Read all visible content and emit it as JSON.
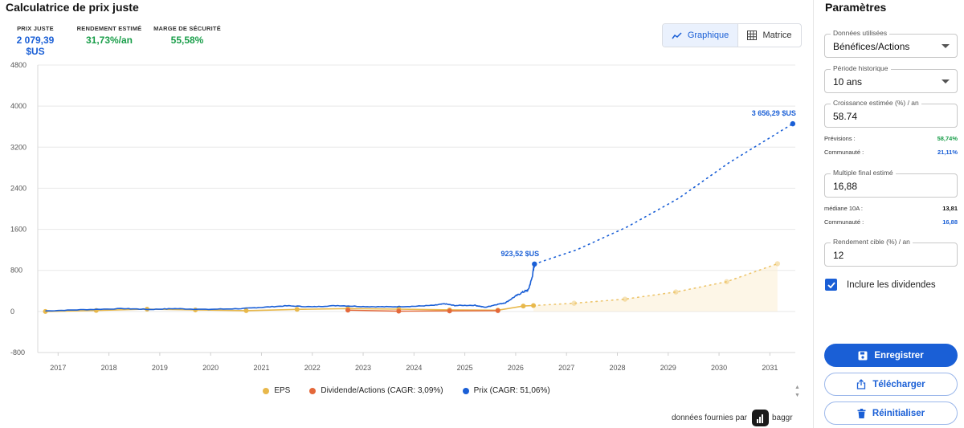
{
  "header": {
    "title": "Calculatrice de prix juste"
  },
  "stats": [
    {
      "label": "PRIX JUSTE",
      "value": "2 079,39 $US",
      "color": "#1a5fd6"
    },
    {
      "label": "RENDEMENT ESTIMÉ",
      "value": "31,73%/an",
      "color": "#1a9e4a"
    },
    {
      "label": "MARGE DE SÉCURITÉ",
      "value": "55,58%",
      "color": "#1a9e4a"
    }
  ],
  "view_toggle": {
    "chart_label": "Graphique",
    "matrix_label": "Matrice",
    "active": "Graphique"
  },
  "chart_data": {
    "type": "line",
    "x_ticks": [
      "2017",
      "2018",
      "2019",
      "2020",
      "2021",
      "2022",
      "2023",
      "2024",
      "2025",
      "2026",
      "2027",
      "2028",
      "2029",
      "2030",
      "2031"
    ],
    "y_ticks": [
      "4800",
      "4000",
      "3200",
      "2400",
      "1600",
      "800",
      "0",
      "-800"
    ],
    "ylim": [
      -800,
      4800
    ],
    "xlim": [
      2016.6,
      2031.5
    ],
    "series": [
      {
        "name": "EPS",
        "color": "#e8b84b",
        "points": [
          [
            2016.75,
            0
          ],
          [
            2017.75,
            20
          ],
          [
            2018.75,
            45
          ],
          [
            2019.7,
            30
          ],
          [
            2020.7,
            15
          ],
          [
            2021.7,
            40
          ],
          [
            2022.7,
            55
          ],
          [
            2023.7,
            45
          ],
          [
            2024.7,
            30
          ],
          [
            2025.65,
            25
          ],
          [
            2026.15,
            105
          ],
          [
            2026.35,
            115
          ]
        ],
        "projection": [
          [
            2026.35,
            115
          ],
          [
            2027.15,
            160
          ],
          [
            2028.15,
            240
          ],
          [
            2029.15,
            380
          ],
          [
            2030.15,
            580
          ],
          [
            2031.15,
            930
          ]
        ]
      },
      {
        "name": "Dividende/Actions (CAGR: 3,09%)",
        "color": "#e4683a",
        "points": [
          [
            2022.7,
            25
          ],
          [
            2023.7,
            5
          ],
          [
            2024.7,
            10
          ],
          [
            2025.65,
            15
          ]
        ]
      },
      {
        "name": "Prix (CAGR: 51,06%)",
        "color": "#1a5fd6",
        "points": [
          [
            2016.75,
            10
          ],
          [
            2017.5,
            35
          ],
          [
            2018.3,
            55
          ],
          [
            2018.8,
            40
          ],
          [
            2019.3,
            55
          ],
          [
            2019.9,
            40
          ],
          [
            2020.6,
            55
          ],
          [
            2021.0,
            80
          ],
          [
            2021.5,
            110
          ],
          [
            2022.0,
            90
          ],
          [
            2022.5,
            115
          ],
          [
            2023.0,
            95
          ],
          [
            2023.5,
            90
          ],
          [
            2024.0,
            100
          ],
          [
            2024.4,
            120
          ],
          [
            2024.6,
            150
          ],
          [
            2024.8,
            115
          ],
          [
            2025.2,
            120
          ],
          [
            2025.4,
            80
          ],
          [
            2025.6,
            130
          ],
          [
            2025.8,
            170
          ],
          [
            2026.0,
            300
          ],
          [
            2026.15,
            380
          ],
          [
            2026.25,
            420
          ],
          [
            2026.32,
            650
          ],
          [
            2026.37,
            923.52
          ]
        ],
        "projection": [
          [
            2026.37,
            923.52
          ],
          [
            2027.2,
            1200
          ],
          [
            2028.2,
            1650
          ],
          [
            2029.2,
            2200
          ],
          [
            2030.2,
            2900
          ],
          [
            2031.45,
            3656.29
          ]
        ]
      }
    ],
    "annotations": [
      {
        "label": "923,52 $US",
        "x": 2026.37,
        "y": 923.52
      },
      {
        "label": "3 656,29 $US",
        "x": 2031.45,
        "y": 3656.29
      }
    ],
    "legend": [
      "EPS",
      "Dividende/Actions (CAGR: 3,09%)",
      "Prix (CAGR: 51,06%)"
    ]
  },
  "footer": {
    "provider_text": "données fournies par",
    "provider_name": "baggr"
  },
  "sidebar": {
    "title": "Paramètres",
    "data_used": {
      "label": "Données utilisées",
      "value": "Bénéfices/Actions"
    },
    "period": {
      "label": "Période historique",
      "value": "10 ans"
    },
    "growth": {
      "label": "Croissance estimée (%) / an",
      "value": "58.74"
    },
    "growth_info": [
      {
        "label": "Prévisions :",
        "value": "58,74%",
        "color": "#1a9e4a"
      },
      {
        "label": "Communauté :",
        "value": "21,11%",
        "color": "#1a5fd6"
      }
    ],
    "multiple": {
      "label": "Multiple final estimé",
      "value": "16,88"
    },
    "multiple_info": [
      {
        "label": "médiane 10A :",
        "value": "13,81",
        "color": "#111111"
      },
      {
        "label": "Communauté :",
        "value": "16,88",
        "color": "#1a5fd6"
      }
    ],
    "target_return": {
      "label": "Rendement cible (%) / an",
      "value": "12"
    },
    "include_dividends": {
      "label": "Inclure les dividendes",
      "checked": true
    },
    "buttons": {
      "save": "Enregistrer",
      "download": "Télécharger",
      "reset": "Réinitialiser"
    }
  }
}
